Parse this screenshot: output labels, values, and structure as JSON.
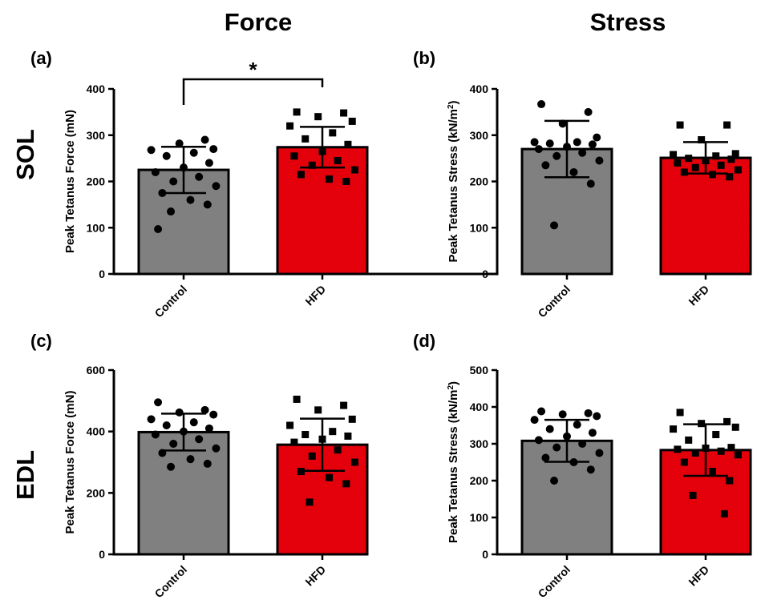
{
  "figure": {
    "column_titles": [
      "Force",
      "Stress"
    ],
    "row_titles": [
      "SOL",
      "EDL"
    ]
  },
  "colors": {
    "control_bar": "#808080",
    "hfd_bar": "#e8000b",
    "marker": "#000000",
    "axis": "#000000"
  },
  "chart_data": [
    {
      "panel": "(a)",
      "type": "bar",
      "categories": [
        "Control",
        "HFD"
      ],
      "ylabel": "Peak Tetanus Force (mN)",
      "ylim": [
        0,
        400
      ],
      "yticks": [
        0,
        100,
        200,
        300,
        400
      ],
      "series": [
        {
          "values": [
            225,
            274
          ]
        },
        {
          "error_sd": [
            50,
            44
          ]
        }
      ],
      "points": {
        "Control": [
          97,
          290,
          282,
          270,
          268,
          262,
          255,
          240,
          230,
          220,
          210,
          200,
          190,
          175,
          160,
          150,
          135
        ],
        "HFD": [
          350,
          348,
          340,
          330,
          320,
          305,
          292,
          280,
          265,
          255,
          245,
          235,
          225,
          215,
          205,
          200
        ]
      },
      "significance": {
        "label": "*",
        "between": [
          "Control",
          "HFD"
        ]
      }
    },
    {
      "panel": "(b)",
      "type": "bar",
      "categories": [
        "Control",
        "HFD"
      ],
      "ylabel": "Peak Tetanus Stress (kN/m2)",
      "ylim": [
        0,
        400
      ],
      "yticks": [
        0,
        100,
        200,
        300,
        400
      ],
      "series": [
        {
          "values": [
            270,
            251
          ]
        },
        {
          "error_sd": [
            61,
            34
          ]
        }
      ],
      "points": {
        "Control": [
          367,
          350,
          325,
          295,
          285,
          285,
          282,
          280,
          275,
          270,
          262,
          255,
          245,
          235,
          220,
          195,
          105
        ],
        "HFD": [
          322,
          322,
          290,
          260,
          258,
          255,
          250,
          248,
          245,
          240,
          235,
          230,
          225,
          220,
          215,
          210
        ]
      }
    },
    {
      "panel": "(c)",
      "type": "bar",
      "categories": [
        "Control",
        "HFD"
      ],
      "ylabel": "Peak Tetanus Force (mN)",
      "ylim": [
        0,
        600
      ],
      "yticks": [
        0,
        200,
        400,
        600
      ],
      "series": [
        {
          "values": [
            398,
            357
          ]
        },
        {
          "error_sd": [
            60,
            85
          ]
        }
      ],
      "points": {
        "Control": [
          495,
          470,
          462,
          455,
          440,
          430,
          420,
          410,
          400,
          390,
          375,
          360,
          345,
          330,
          310,
          295,
          285
        ],
        "HFD": [
          505,
          485,
          470,
          440,
          420,
          400,
          390,
          385,
          375,
          365,
          340,
          320,
          300,
          270,
          250,
          230,
          170
        ]
      }
    },
    {
      "panel": "(d)",
      "type": "bar",
      "categories": [
        "Control",
        "HFD"
      ],
      "ylabel": "Peak Tetanus Stress (kN/m2)",
      "ylim": [
        0,
        500
      ],
      "yticks": [
        0,
        100,
        200,
        300,
        400,
        500
      ],
      "series": [
        {
          "values": [
            308,
            283
          ]
        },
        {
          "error_sd": [
            57,
            70
          ]
        }
      ],
      "points": {
        "Control": [
          388,
          383,
          380,
          375,
          365,
          352,
          340,
          330,
          320,
          310,
          300,
          290,
          275,
          262,
          250,
          230,
          200
        ],
        "HFD": [
          385,
          360,
          355,
          345,
          340,
          325,
          310,
          290,
          288,
          285,
          280,
          275,
          270,
          250,
          225,
          200,
          160,
          110
        ]
      }
    }
  ]
}
